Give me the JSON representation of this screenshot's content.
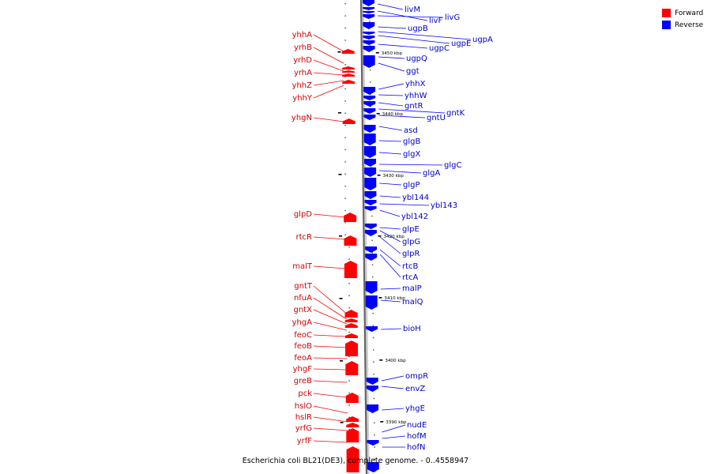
{
  "legend": {
    "forward_label": "Forward",
    "reverse_label": "Reverse",
    "forward_color": "#ff0000",
    "reverse_color": "#0000ff"
  },
  "caption": "Escherichia coli BL21(DE3), complete genome. - 0..4558947",
  "ruler": [
    {
      "label": "3450 kbp",
      "pos": 3450
    },
    {
      "label": "3440 kbp",
      "pos": 3440
    },
    {
      "label": "3430 kbp",
      "pos": 3430
    },
    {
      "label": "3420 kbp",
      "pos": 3420
    },
    {
      "label": "3410 kbp",
      "pos": 3410
    },
    {
      "label": "3400 kbp",
      "pos": 3400
    },
    {
      "label": "3390 kbp",
      "pos": 3390
    }
  ],
  "forward_genes": [
    "yhhA",
    "yrhB",
    "yrhD",
    "yrhA",
    "yhhZ",
    "yhhY",
    "yhgN",
    "glpD",
    "rtcR",
    "malT",
    "gntT",
    "nfuA",
    "gntX",
    "yhgA",
    "feoC",
    "feoB",
    "feoA",
    "yhgF",
    "greB",
    "pck",
    "hslO",
    "hslR",
    "yrfG",
    "yrfF"
  ],
  "reverse_genes": [
    "livM",
    "livF",
    "livG",
    "ugpB",
    "ugpA",
    "ugpE",
    "ugpC",
    "ugpQ",
    "ggt",
    "yhhX",
    "yhhW",
    "gntR",
    "gntK",
    "gntU",
    "asd",
    "glgB",
    "glgX",
    "glgC",
    "glgA",
    "glgP",
    "ybl144",
    "ybl143",
    "ybl142",
    "glpE",
    "glpG",
    "glpR",
    "rtcB",
    "rtcA",
    "malP",
    "malQ",
    "bioH",
    "ompR",
    "envZ",
    "yhgE",
    "nudE",
    "hofM",
    "hofN"
  ]
}
